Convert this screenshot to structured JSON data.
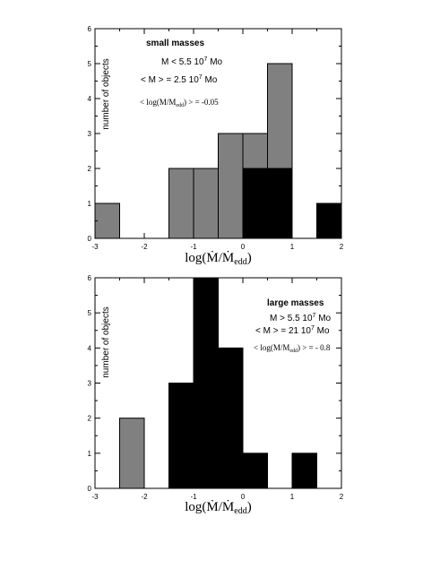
{
  "chart_data": [
    {
      "type": "bar",
      "title": "small masses",
      "xlabel": "log(Ṁ/Ṁedd)",
      "ylabel": "number of objects",
      "xlim": [
        -3,
        2
      ],
      "ylim": [
        0,
        6
      ],
      "x_ticks": [
        -3,
        -2,
        -1,
        0,
        1,
        2
      ],
      "y_ticks": [
        0,
        1,
        2,
        3,
        4,
        5,
        6
      ],
      "bin_width": 0.5,
      "annotations": [
        {
          "text": "M < 5.5 10",
          "sup": "7",
          "after": " Mo"
        },
        {
          "text": "< M > = 2.5 10",
          "sup": "7",
          "after": " Mo"
        },
        {
          "text": "<  log(M/M",
          "sub": "edd",
          "after": ") > = -0.05"
        }
      ],
      "series": [
        {
          "color": "#808080",
          "bins": [
            {
              "x0": -3.0,
              "x1": -2.5,
              "value": 1
            },
            {
              "x0": -1.5,
              "x1": -1.0,
              "value": 2
            },
            {
              "x0": -1.0,
              "x1": -0.5,
              "value": 2
            },
            {
              "x0": -0.5,
              "x1": 0.0,
              "value": 3
            },
            {
              "x0": 0.0,
              "x1": 0.5,
              "value": 3
            },
            {
              "x0": 0.5,
              "x1": 1.0,
              "value": 5
            }
          ]
        },
        {
          "color": "#000000",
          "bins": [
            {
              "x0": 0.0,
              "x1": 0.5,
              "value": 2
            },
            {
              "x0": 0.5,
              "x1": 1.0,
              "value": 2
            },
            {
              "x0": 1.5,
              "x1": 2.0,
              "value": 1
            }
          ]
        }
      ]
    },
    {
      "type": "bar",
      "title": "large masses",
      "xlabel": "log(Ṁ/Ṁedd)",
      "ylabel": "number of objects",
      "xlim": [
        -3,
        2
      ],
      "ylim": [
        0,
        6
      ],
      "x_ticks": [
        -3,
        -2,
        -1,
        0,
        1,
        2
      ],
      "y_ticks": [
        0,
        1,
        2,
        3,
        4,
        5,
        6
      ],
      "bin_width": 0.5,
      "annotations": [
        {
          "text": "M > 5.5 10",
          "sup": "7",
          "after": " Mo"
        },
        {
          "text": "< M > = 21 10",
          "sup": "7",
          "after": " Mo"
        },
        {
          "text": "<  log(M/M",
          "sub": "edd",
          "after": ") > = - 0.8"
        }
      ],
      "series": [
        {
          "color": "#808080",
          "bins": [
            {
              "x0": -2.5,
              "x1": -2.0,
              "value": 2
            }
          ]
        },
        {
          "color": "#000000",
          "bins": [
            {
              "x0": -1.5,
              "x1": -1.0,
              "value": 3
            },
            {
              "x0": -1.0,
              "x1": -0.5,
              "value": 6
            },
            {
              "x0": -0.5,
              "x1": 0.0,
              "value": 4
            },
            {
              "x0": 0.0,
              "x1": 0.5,
              "value": 1
            },
            {
              "x0": 1.0,
              "x1": 1.5,
              "value": 1
            }
          ]
        }
      ]
    }
  ]
}
